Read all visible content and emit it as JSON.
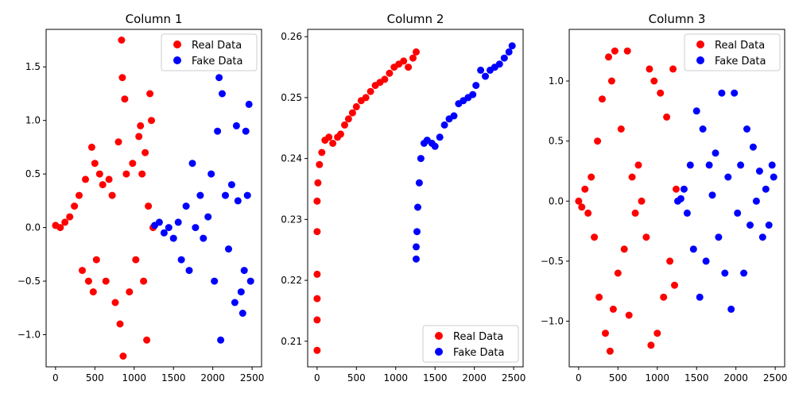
{
  "chart_data": [
    {
      "type": "scatter",
      "title": "Column 1",
      "xlabel": "",
      "ylabel": "",
      "xlim": [
        -120,
        2620
      ],
      "ylim": [
        -1.3,
        1.85
      ],
      "xticks": [
        0,
        500,
        1000,
        1500,
        2000,
        2500
      ],
      "yticks": [
        -1.0,
        -0.5,
        0.0,
        0.5,
        1.0,
        1.5
      ],
      "xtick_labels": [
        "0",
        "500",
        "1000",
        "1500",
        "2000",
        "2500"
      ],
      "ytick_labels": [
        "−1.0",
        "−0.5",
        "0.0",
        "0.5",
        "1.0",
        "1.5"
      ],
      "legend_position": "top-right",
      "series": [
        {
          "name": "Real Data",
          "color": "#ff0000",
          "x": [
            0,
            60,
            120,
            180,
            240,
            300,
            340,
            380,
            420,
            460,
            480,
            500,
            520,
            560,
            600,
            640,
            680,
            720,
            760,
            800,
            820,
            840,
            850,
            860,
            880,
            900,
            940,
            980,
            1020,
            1060,
            1080,
            1100,
            1120,
            1140,
            1160,
            1180,
            1200,
            1220,
            1240
          ],
          "y": [
            0.02,
            0.0,
            0.05,
            0.1,
            0.2,
            0.3,
            -0.4,
            0.45,
            -0.5,
            0.75,
            -0.6,
            0.6,
            -0.3,
            0.5,
            0.4,
            -0.5,
            0.45,
            0.3,
            -0.7,
            0.8,
            -0.9,
            1.75,
            1.4,
            -1.2,
            1.2,
            0.5,
            -0.6,
            0.6,
            -0.3,
            0.85,
            0.95,
            0.5,
            -0.5,
            0.7,
            -1.05,
            0.2,
            1.25,
            1.0,
            0.0
          ]
        },
        {
          "name": "Fake Data",
          "color": "#0000ff",
          "x": [
            1260,
            1320,
            1380,
            1440,
            1500,
            1560,
            1600,
            1660,
            1700,
            1740,
            1780,
            1840,
            1880,
            1940,
            1980,
            2020,
            2060,
            2080,
            2100,
            2120,
            2160,
            2200,
            2240,
            2280,
            2300,
            2320,
            2360,
            2380,
            2400,
            2420,
            2440,
            2460,
            2480
          ],
          "y": [
            0.02,
            0.05,
            -0.05,
            0.0,
            -0.1,
            0.05,
            -0.3,
            0.2,
            -0.4,
            0.6,
            0.0,
            0.3,
            -0.1,
            0.1,
            0.5,
            -0.5,
            0.9,
            1.4,
            -1.05,
            1.25,
            0.3,
            -0.2,
            0.4,
            -0.7,
            0.95,
            0.25,
            -0.6,
            -0.8,
            -0.4,
            0.9,
            0.3,
            1.15,
            -0.5
          ]
        }
      ]
    },
    {
      "type": "scatter",
      "title": "Column 2",
      "xlabel": "",
      "ylabel": "",
      "xlim": [
        -120,
        2620
      ],
      "ylim": [
        0.2058,
        0.2612
      ],
      "xticks": [
        0,
        500,
        1000,
        1500,
        2000,
        2500
      ],
      "yticks": [
        0.21,
        0.22,
        0.23,
        0.24,
        0.25,
        0.26
      ],
      "xtick_labels": [
        "0",
        "500",
        "1000",
        "1500",
        "2000",
        "2500"
      ],
      "ytick_labels": [
        "0.21",
        "0.22",
        "0.23",
        "0.24",
        "0.25",
        "0.26"
      ],
      "legend_position": "bottom-right",
      "series": [
        {
          "name": "Real Data",
          "color": "#ff0000",
          "x": [
            0,
            0,
            0,
            0,
            0,
            0,
            10,
            30,
            60,
            100,
            150,
            200,
            260,
            300,
            350,
            400,
            450,
            500,
            560,
            620,
            680,
            740,
            800,
            860,
            920,
            980,
            1040,
            1100,
            1160,
            1220,
            1260
          ],
          "y": [
            0.2085,
            0.2135,
            0.217,
            0.221,
            0.228,
            0.233,
            0.236,
            0.239,
            0.241,
            0.243,
            0.2435,
            0.2425,
            0.2435,
            0.244,
            0.2455,
            0.2465,
            0.2475,
            0.2485,
            0.2495,
            0.25,
            0.251,
            0.252,
            0.2525,
            0.253,
            0.254,
            0.255,
            0.2555,
            0.256,
            0.255,
            0.2565,
            0.2575
          ]
        },
        {
          "name": "Fake Data",
          "color": "#0000ff",
          "x": [
            1260,
            1260,
            1270,
            1280,
            1300,
            1320,
            1360,
            1400,
            1460,
            1500,
            1560,
            1620,
            1680,
            1740,
            1800,
            1860,
            1920,
            1980,
            2020,
            2080,
            2140,
            2200,
            2260,
            2320,
            2380,
            2440,
            2480
          ],
          "y": [
            0.2235,
            0.2255,
            0.228,
            0.232,
            0.236,
            0.24,
            0.2425,
            0.243,
            0.2425,
            0.242,
            0.2435,
            0.2455,
            0.2465,
            0.247,
            0.249,
            0.2495,
            0.25,
            0.2505,
            0.252,
            0.2545,
            0.2535,
            0.2545,
            0.255,
            0.2555,
            0.2565,
            0.2575,
            0.2585
          ]
        }
      ]
    },
    {
      "type": "scatter",
      "title": "Column 3",
      "xlabel": "",
      "ylabel": "",
      "xlim": [
        -120,
        2620
      ],
      "ylim": [
        -1.38,
        1.43
      ],
      "xticks": [
        0,
        500,
        1000,
        1500,
        2000,
        2500
      ],
      "yticks": [
        -1.0,
        -0.5,
        0.0,
        0.5,
        1.0
      ],
      "xtick_labels": [
        "0",
        "500",
        "1000",
        "1500",
        "2000",
        "2500"
      ],
      "ytick_labels": [
        "−1.0",
        "−0.5",
        "0.0",
        "0.5",
        "1.0"
      ],
      "legend_position": "top-right",
      "series": [
        {
          "name": "Real Data",
          "color": "#ff0000",
          "x": [
            0,
            40,
            80,
            120,
            160,
            200,
            240,
            260,
            300,
            340,
            380,
            400,
            420,
            440,
            460,
            500,
            540,
            580,
            620,
            640,
            680,
            720,
            760,
            800,
            860,
            900,
            920,
            960,
            1000,
            1040,
            1080,
            1120,
            1160,
            1200,
            1220,
            1240
          ],
          "y": [
            0.0,
            -0.05,
            0.1,
            -0.1,
            0.2,
            -0.3,
            0.5,
            -0.8,
            0.85,
            -1.1,
            1.2,
            -1.25,
            1.0,
            -0.9,
            1.25,
            -0.6,
            0.6,
            -0.4,
            1.25,
            -0.95,
            0.2,
            -0.1,
            0.3,
            0.0,
            -0.3,
            1.1,
            -1.2,
            1.0,
            -1.1,
            0.9,
            -0.8,
            0.7,
            -0.5,
            1.1,
            -0.7,
            0.1
          ]
        },
        {
          "name": "Fake Data",
          "color": "#0000ff",
          "x": [
            1260,
            1300,
            1340,
            1380,
            1420,
            1460,
            1500,
            1540,
            1580,
            1620,
            1660,
            1700,
            1740,
            1780,
            1820,
            1860,
            1900,
            1940,
            1980,
            2020,
            2060,
            2100,
            2140,
            2180,
            2220,
            2260,
            2300,
            2340,
            2380,
            2420,
            2460,
            2480
          ],
          "y": [
            0.0,
            0.02,
            0.1,
            -0.1,
            0.3,
            -0.4,
            0.75,
            -0.8,
            0.6,
            -0.5,
            0.3,
            0.05,
            0.4,
            -0.3,
            0.9,
            -0.6,
            0.2,
            -0.9,
            0.9,
            -0.1,
            0.3,
            -0.6,
            0.6,
            -0.2,
            0.45,
            0.0,
            0.25,
            -0.3,
            0.1,
            -0.2,
            0.3,
            0.2
          ]
        }
      ]
    }
  ]
}
